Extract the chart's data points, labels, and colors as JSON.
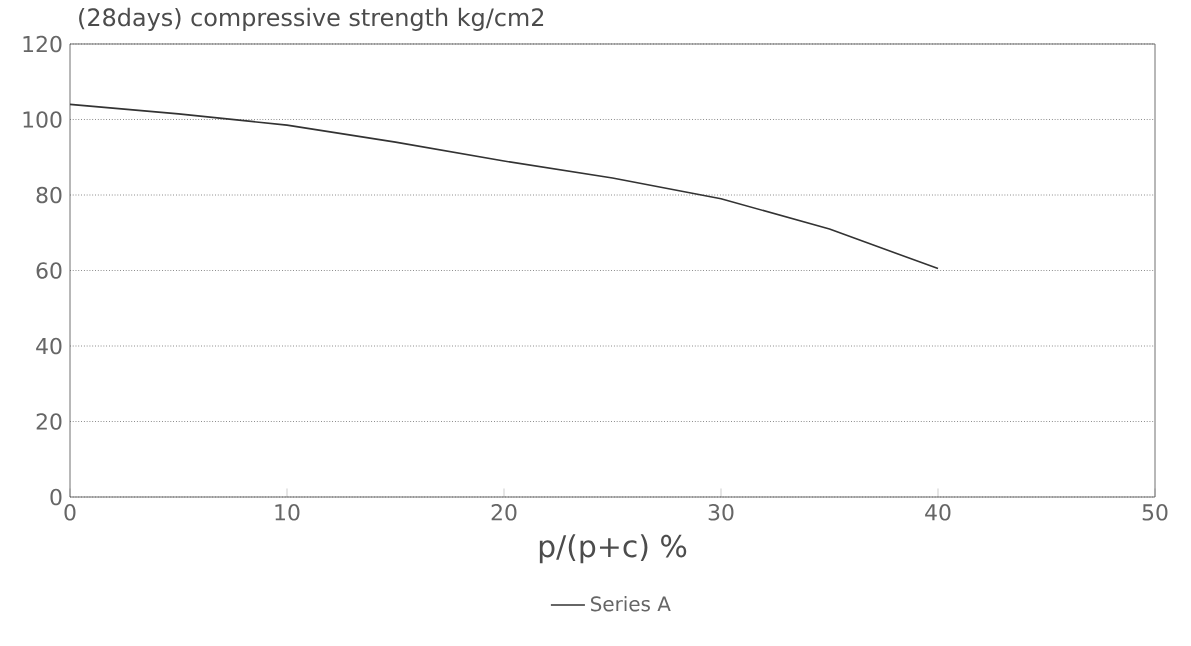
{
  "chart_data": {
    "type": "line",
    "title": "(28days) compressive strength kg/cm2",
    "xlabel": "p/(p+c) %",
    "x": [
      0,
      5,
      10,
      15,
      20,
      25,
      30,
      35,
      40
    ],
    "series": [
      {
        "name": "Series A",
        "color": "#333333",
        "values": [
          104,
          101.5,
          98.5,
          94,
          89,
          84.5,
          79,
          71,
          60.5
        ]
      }
    ],
    "xlim": [
      0,
      50
    ],
    "xticks": [
      0,
      10,
      20,
      30,
      40,
      50
    ],
    "ylim": [
      0,
      120
    ],
    "yticks": [
      0,
      20,
      40,
      60,
      80,
      100,
      120
    ],
    "grid": "y",
    "legend": "bottom",
    "line_style": "solid"
  }
}
